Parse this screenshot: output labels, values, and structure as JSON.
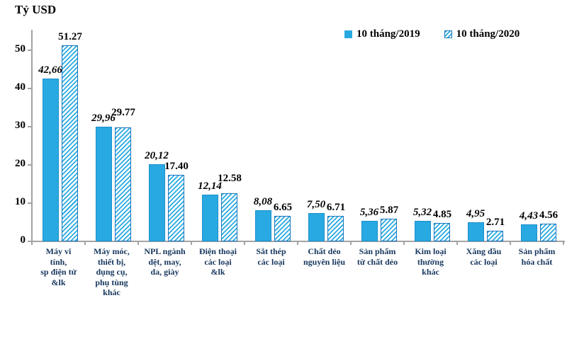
{
  "title": "Tỷ USD",
  "legend": {
    "items": [
      {
        "label": "10 tháng/2019",
        "swatch": "solid"
      },
      {
        "label": "10 tháng/2020",
        "swatch": "hatched"
      }
    ]
  },
  "colors": {
    "bar_fill": "#29a9e1",
    "hatch_border": "#1976bd",
    "axis": "#a3a3a3",
    "category_label": "#17375e",
    "value_label": "#000000"
  },
  "chart_data": {
    "type": "bar",
    "title": "Tỷ USD",
    "ylabel": "Tỷ USD",
    "xlabel": "",
    "ylim": [
      0,
      55
    ],
    "yticks": [
      0,
      10,
      20,
      30,
      40,
      50
    ],
    "grid": false,
    "legend_position": "top-right",
    "categories": [
      "Máy vi\ntính,\nsp điện tử\n&lk",
      "Máy móc,\nthiết bị,\ndụng cụ,\nphụ tùng\nkhác",
      "NPL ngành\ndệt, may,\nda, giày",
      "Điện thoại\ncác loại\n&lk",
      "Sắt thép\ncác loại",
      "Chất dẻo\nnguyên liệu",
      "Sản phẩm\ntừ chất dẻo",
      "Kim loại\nthường\nkhác",
      "Xăng dầu\ncác loại",
      "Sản phẩm\nhóa chất"
    ],
    "series": [
      {
        "name": "10 tháng/2019",
        "style": "solid",
        "values": [
          42.66,
          29.96,
          20.12,
          12.14,
          8.08,
          7.5,
          5.36,
          5.32,
          4.95,
          4.43
        ],
        "value_labels": [
          "42,66",
          "29,96",
          "20,12",
          "12,14",
          "8,08",
          "7,50",
          "5,36",
          "5,32",
          "4,95",
          "4,43"
        ]
      },
      {
        "name": "10 tháng/2020",
        "style": "hatched",
        "values": [
          51.27,
          29.77,
          17.4,
          12.58,
          6.65,
          6.71,
          5.87,
          4.85,
          2.71,
          4.56
        ],
        "value_labels": [
          "51.27",
          "29.77",
          "17.40",
          "12.58",
          "6.65",
          "6.71",
          "5.87",
          "4.85",
          "2.71",
          "4.56"
        ]
      }
    ]
  }
}
